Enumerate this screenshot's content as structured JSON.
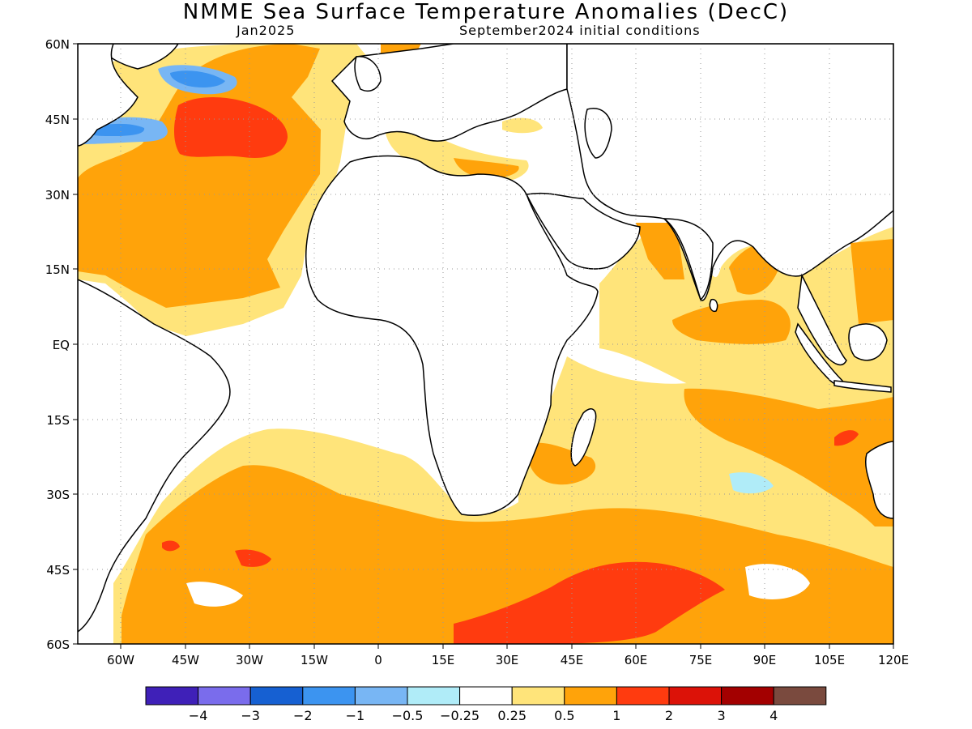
{
  "title": "NMME Sea Surface Temperature Anomalies (DecC)",
  "subtitle_left": "Jan2025",
  "subtitle_right": "September2024 initial conditions",
  "lat_labels": [
    "60N",
    "45N",
    "30N",
    "15N",
    "EQ",
    "15S",
    "30S",
    "45S",
    "60S"
  ],
  "lon_labels": [
    "60W",
    "45W",
    "30W",
    "15W",
    "0",
    "15E",
    "30E",
    "45E",
    "60E",
    "75E",
    "90E",
    "105E",
    "120E"
  ],
  "colorbar": {
    "colors": [
      "#3f20b8",
      "#7a6cec",
      "#1660d2",
      "#3c94f0",
      "#78b6f4",
      "#b0ecf8",
      "#ffffff",
      "#ffe47a",
      "#ffa30a",
      "#ff3b0f",
      "#dc1208",
      "#a30000",
      "#7a4a3e"
    ],
    "labels": [
      "-4",
      "-3",
      "-2",
      "-1",
      "-0.5",
      "-0.25",
      "0.25",
      "0.5",
      "1",
      "2",
      "3",
      "4"
    ]
  },
  "map": {
    "lat_range": [
      "60S",
      "60N"
    ],
    "lon_range": [
      "70W",
      "120E"
    ],
    "grid": "dotted"
  }
}
